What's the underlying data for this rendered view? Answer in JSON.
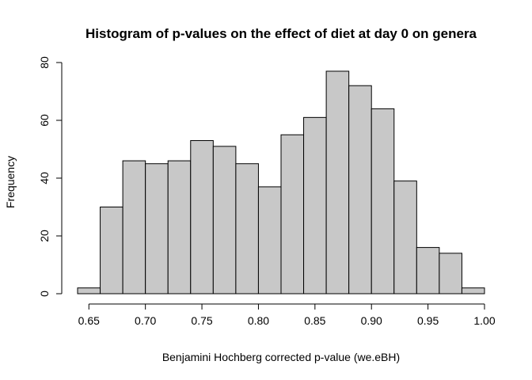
{
  "chart_data": {
    "type": "bar",
    "subtype": "histogram",
    "title": "Histogram of p-values on the effect of diet at day 0 on genera",
    "xlabel": "Benjamini Hochberg corrected p-value (we.eBH)",
    "ylabel": "Frequency",
    "bin_edges": [
      0.64,
      0.66,
      0.68,
      0.7,
      0.72,
      0.74,
      0.76,
      0.78,
      0.8,
      0.82,
      0.84,
      0.86,
      0.88,
      0.9,
      0.92,
      0.94,
      0.96,
      0.98,
      1.0
    ],
    "values": [
      2,
      30,
      46,
      45,
      46,
      53,
      51,
      45,
      37,
      55,
      61,
      77,
      72,
      64,
      39,
      16,
      14,
      2
    ],
    "xlim": [
      0.64,
      1.0
    ],
    "ylim": [
      0,
      80
    ],
    "x_ticks": [
      "0.65",
      "0.70",
      "0.75",
      "0.80",
      "0.85",
      "0.90",
      "0.95",
      "1.00"
    ],
    "x_tick_values": [
      0.65,
      0.7,
      0.75,
      0.8,
      0.85,
      0.9,
      0.95,
      1.0
    ],
    "y_ticks": [
      "0",
      "20",
      "40",
      "60",
      "80"
    ],
    "y_tick_values": [
      0,
      20,
      40,
      60,
      80
    ],
    "grid": false,
    "legend": "none",
    "bar_fill": "#c8c8c8",
    "bar_stroke": "#000000"
  }
}
